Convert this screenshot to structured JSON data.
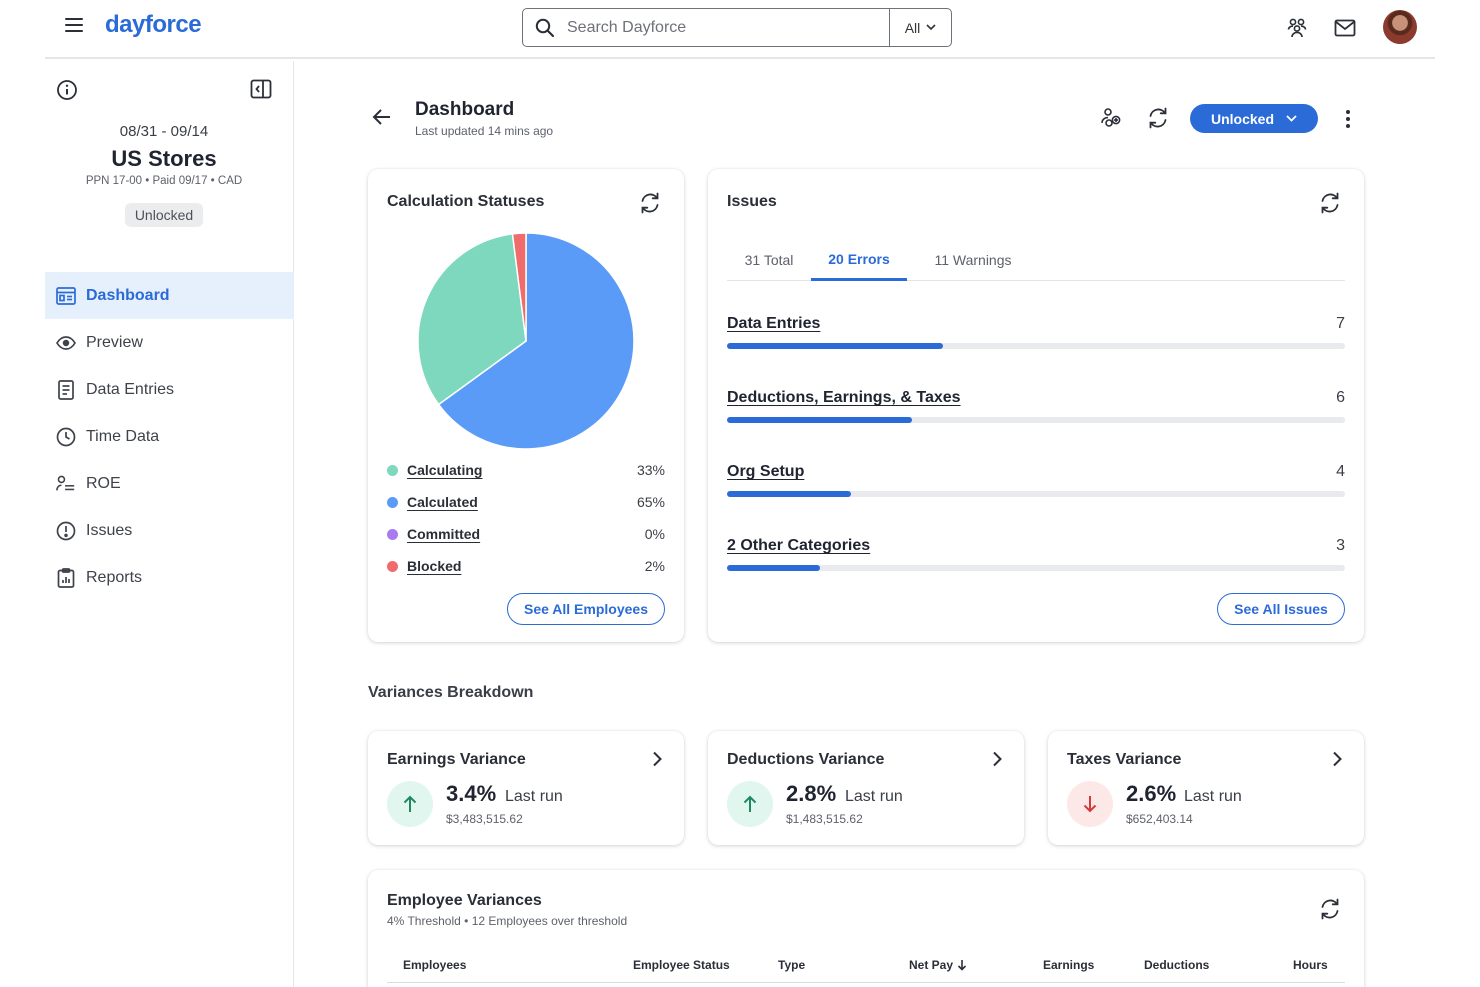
{
  "app": {
    "logo_text": "dayforce",
    "brand_color": "#2b6bd8"
  },
  "search": {
    "placeholder": "Search Dayforce",
    "scope": "All"
  },
  "topbar_icons": [
    "menu-icon",
    "people-icon",
    "mail-icon",
    "avatar"
  ],
  "pay_period": {
    "dates": "08/31 - 09/14",
    "name": "US Stores",
    "meta": "PPN 17-00 • Paid 09/17 • CAD",
    "status_badge": "Unlocked"
  },
  "nav": [
    {
      "label": "Dashboard",
      "icon": "dashboard-icon",
      "active": true
    },
    {
      "label": "Preview",
      "icon": "eye-icon"
    },
    {
      "label": "Data Entries",
      "icon": "document-icon"
    },
    {
      "label": "Time Data",
      "icon": "clock-icon"
    },
    {
      "label": "ROE",
      "icon": "person-list-icon"
    },
    {
      "label": "Issues",
      "icon": "alert-icon"
    },
    {
      "label": "Reports",
      "icon": "clipboard-icon"
    }
  ],
  "header": {
    "title": "Dashboard",
    "subtitle": "Last updated 14 mins ago",
    "status_button": "Unlocked"
  },
  "calc": {
    "title": "Calculation Statuses",
    "button": "See All Employees"
  },
  "chart_data": {
    "type": "pie",
    "categories": [
      "Calculating",
      "Calculated",
      "Committed",
      "Blocked"
    ],
    "values": [
      33,
      65,
      0,
      2
    ],
    "display_values": [
      "33%",
      "65%",
      "0%",
      "2%"
    ],
    "colors": [
      "#7dd8bd",
      "#5b9bf8",
      "#a87cf0",
      "#f06b6b"
    ]
  },
  "issues": {
    "title": "Issues",
    "tabs": [
      {
        "label": "31 Total"
      },
      {
        "label": "20 Errors",
        "active": true
      },
      {
        "label": "11 Warnings"
      }
    ],
    "rows": [
      {
        "label": "Data Entries",
        "count": "7",
        "value": 7
      },
      {
        "label": "Deductions, Earnings, & Taxes",
        "count": "6",
        "value": 6
      },
      {
        "label": "Org Setup",
        "count": "4",
        "value": 4
      },
      {
        "label": "2 Other Categories",
        "count": "3",
        "value": 3
      }
    ],
    "button": "See All Issues"
  },
  "variances": {
    "section_title": "Variances Breakdown",
    "cards": [
      {
        "title": "Earnings Variance",
        "pct": "3.4%",
        "last_run": "Last run",
        "amount": "$3,483,515.62",
        "direction": "up"
      },
      {
        "title": "Deductions Variance",
        "pct": "2.8%",
        "last_run": "Last run",
        "amount": "$1,483,515.62",
        "direction": "up"
      },
      {
        "title": "Taxes Variance",
        "pct": "2.6%",
        "last_run": "Last run",
        "amount": "$652,403.14",
        "direction": "down"
      }
    ]
  },
  "employee_variances": {
    "title": "Employee Variances",
    "subtitle": "4% Threshold • 12 Employees over threshold",
    "columns": [
      "Employees",
      "Employee Status",
      "Type",
      "Net Pay",
      "Earnings",
      "Deductions",
      "Hours"
    ],
    "sorted_column": "Net Pay"
  }
}
